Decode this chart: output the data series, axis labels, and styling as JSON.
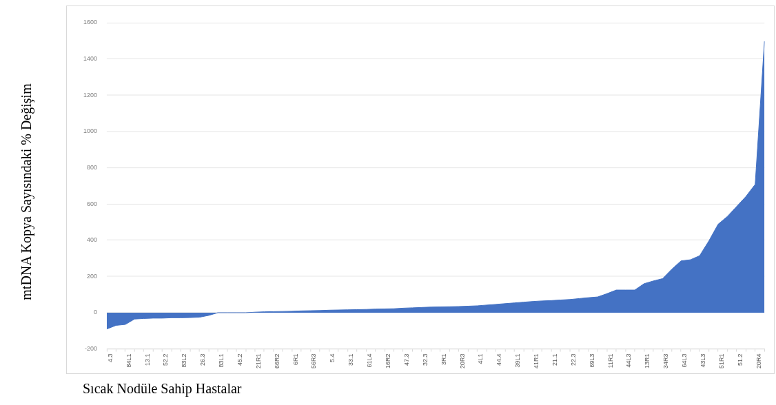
{
  "chart_data": {
    "type": "area",
    "xlabel": "Sıcak Nodüle Sahip Hastalar",
    "ylabel": "mtDNA Kopya Sayısındaki % Değişim",
    "categories": [
      "4.3",
      null,
      "84L1",
      null,
      "13.1",
      null,
      "52.2",
      null,
      "83L2",
      null,
      "26.3",
      null,
      "83L1",
      null,
      "45.2",
      null,
      "21R1",
      null,
      "66R2",
      null,
      "6R1",
      null,
      "56R3",
      null,
      "5.4",
      null,
      "33.1",
      null,
      "61L4",
      null,
      "16R2",
      null,
      "47.3",
      null,
      "32.3",
      null,
      "3R1",
      null,
      "20R3",
      null,
      "4L1",
      null,
      "44.4",
      null,
      "39L1",
      null,
      "41R1",
      null,
      "21.1",
      null,
      "22.3",
      null,
      "69L3",
      null,
      "11R1",
      null,
      "44L3",
      null,
      "13R1",
      null,
      "34R3",
      null,
      "64L3",
      null,
      "43L3",
      null,
      "51R1",
      null,
      "51.2",
      null,
      "20R4",
      null
    ],
    "series": [
      {
        "color": "#4472c4",
        "values": [
          -90,
          -70,
          -65,
          -35,
          -32,
          -30,
          -30,
          -28,
          -28,
          -27,
          -25,
          -15,
          0,
          0,
          0,
          0,
          3,
          5,
          6,
          7,
          8,
          10,
          11,
          12,
          14,
          15,
          16,
          17,
          18,
          20,
          21,
          22,
          25,
          27,
          29,
          31,
          32,
          33,
          34,
          36,
          38,
          42,
          46,
          50,
          54,
          58,
          62,
          65,
          67,
          70,
          73,
          78,
          83,
          87,
          105,
          125,
          125,
          125,
          160,
          175,
          188,
          240,
          286,
          292,
          314,
          396,
          488,
          531,
          586,
          641,
          708,
          1497
        ]
      }
    ],
    "ylim": [
      -200,
      1600
    ],
    "yticks": [
      -200,
      0,
      200,
      400,
      600,
      800,
      1000,
      1200,
      1400,
      1600
    ],
    "grid": "y",
    "legend": false
  }
}
